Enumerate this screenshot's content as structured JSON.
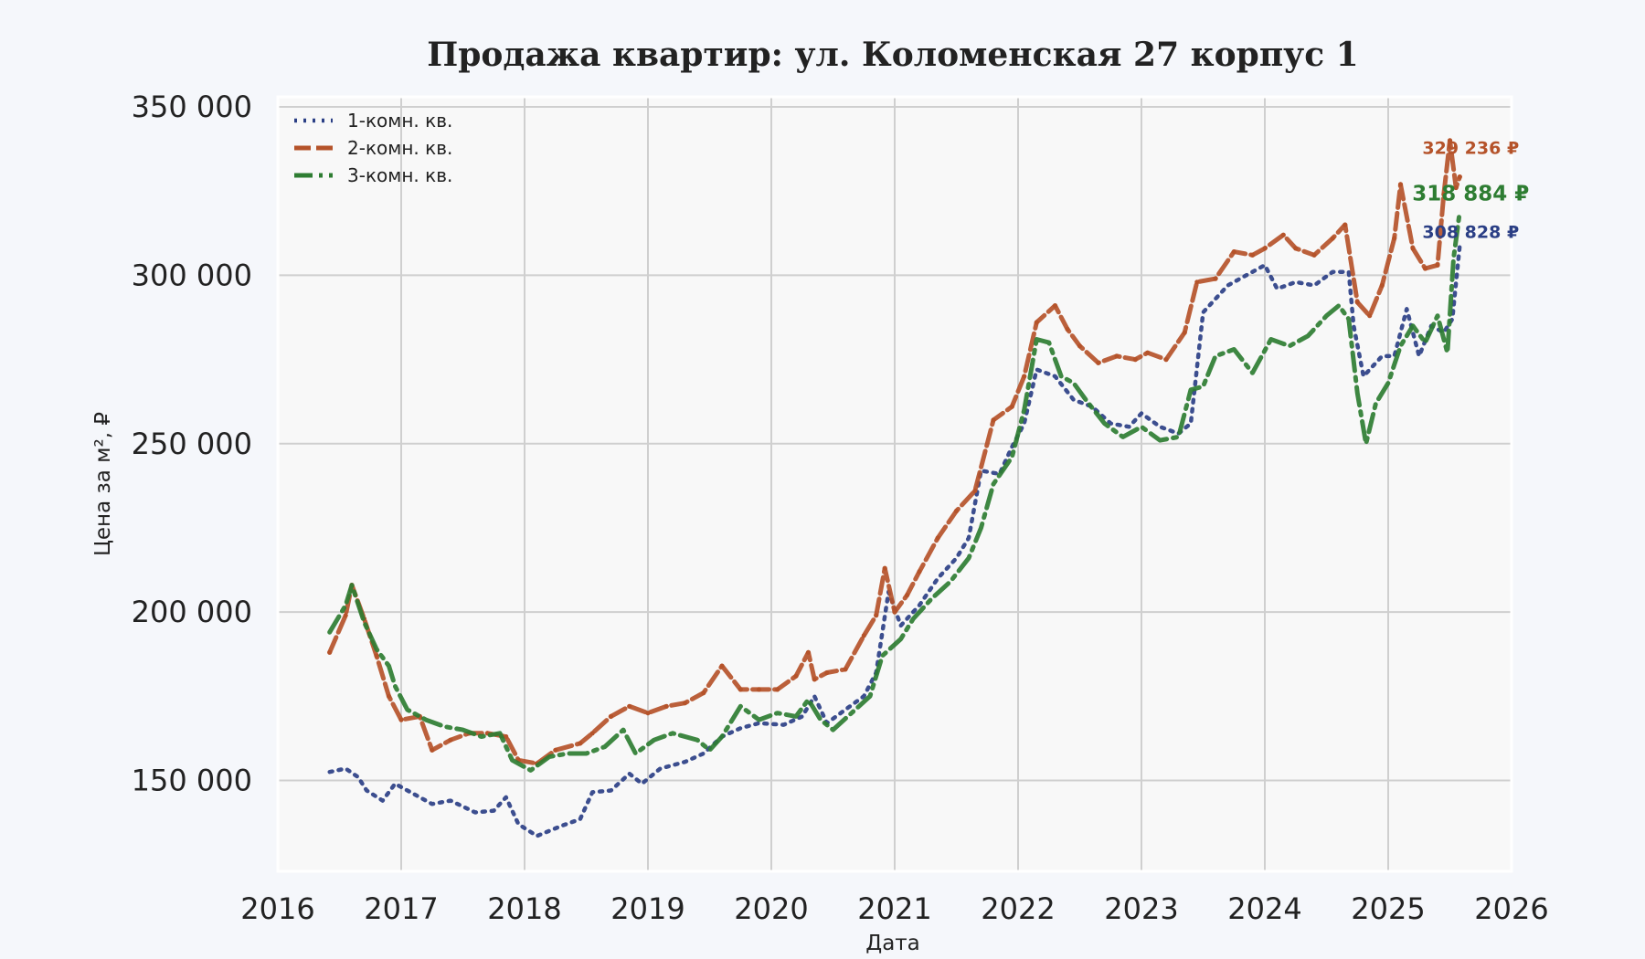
{
  "chart_data": {
    "type": "line",
    "title": "Продажа квартир: ул. Коломенская 27 корпус 1",
    "xlabel": "Дата",
    "ylabel": "Цена за м², ₽",
    "xlim": [
      2016,
      2026
    ],
    "ylim": [
      123000,
      353000
    ],
    "x_ticks": [
      2016,
      2017,
      2018,
      2019,
      2020,
      2021,
      2022,
      2023,
      2024,
      2025,
      2026
    ],
    "x_tick_labels": [
      "2016",
      "2017",
      "2018",
      "2019",
      "2020",
      "2021",
      "2022",
      "2023",
      "2024",
      "2025",
      "2026"
    ],
    "y_ticks": [
      150000,
      200000,
      250000,
      300000,
      350000
    ],
    "y_tick_labels": [
      "150 000",
      "200 000",
      "250 000",
      "300 000",
      "350 000"
    ],
    "grid": true,
    "legend_position": "top-left",
    "series": [
      {
        "name": "1-комн. кв.",
        "color": "#2b3f85",
        "dash": "dotted",
        "end_label": "308 828 ₽",
        "end_value": 308828,
        "points": [
          [
            2016.42,
            152500
          ],
          [
            2016.55,
            153500
          ],
          [
            2016.65,
            151000
          ],
          [
            2016.72,
            147000
          ],
          [
            2016.85,
            144000
          ],
          [
            2016.95,
            149000
          ],
          [
            2017.1,
            146000
          ],
          [
            2017.25,
            143000
          ],
          [
            2017.4,
            144000
          ],
          [
            2017.6,
            140500
          ],
          [
            2017.75,
            141000
          ],
          [
            2017.85,
            145000
          ],
          [
            2017.95,
            137000
          ],
          [
            2018.1,
            133500
          ],
          [
            2018.3,
            136500
          ],
          [
            2018.45,
            138500
          ],
          [
            2018.55,
            146500
          ],
          [
            2018.7,
            147000
          ],
          [
            2018.85,
            152000
          ],
          [
            2018.95,
            149000
          ],
          [
            2019.1,
            153500
          ],
          [
            2019.3,
            155500
          ],
          [
            2019.45,
            158000
          ],
          [
            2019.6,
            163000
          ],
          [
            2019.75,
            165500
          ],
          [
            2019.9,
            167000
          ],
          [
            2020.1,
            166500
          ],
          [
            2020.25,
            169000
          ],
          [
            2020.35,
            175000
          ],
          [
            2020.45,
            167000
          ],
          [
            2020.6,
            171000
          ],
          [
            2020.75,
            175000
          ],
          [
            2020.85,
            182000
          ],
          [
            2020.95,
            206000
          ],
          [
            2021.05,
            196000
          ],
          [
            2021.2,
            202000
          ],
          [
            2021.35,
            210000
          ],
          [
            2021.5,
            216000
          ],
          [
            2021.6,
            222000
          ],
          [
            2021.7,
            242000
          ],
          [
            2021.85,
            241000
          ],
          [
            2021.95,
            249000
          ],
          [
            2022.05,
            256000
          ],
          [
            2022.15,
            272000
          ],
          [
            2022.3,
            270000
          ],
          [
            2022.45,
            263000
          ],
          [
            2022.6,
            261000
          ],
          [
            2022.75,
            256000
          ],
          [
            2022.9,
            255000
          ],
          [
            2023.0,
            259000
          ],
          [
            2023.15,
            255000
          ],
          [
            2023.3,
            253000
          ],
          [
            2023.4,
            256000
          ],
          [
            2023.5,
            289000
          ],
          [
            2023.7,
            297000
          ],
          [
            2023.85,
            300000
          ],
          [
            2024.0,
            303000
          ],
          [
            2024.1,
            296000
          ],
          [
            2024.25,
            298000
          ],
          [
            2024.4,
            297000
          ],
          [
            2024.55,
            301000
          ],
          [
            2024.68,
            301000
          ],
          [
            2024.72,
            285000
          ],
          [
            2024.8,
            270000
          ],
          [
            2024.95,
            276000
          ],
          [
            2025.05,
            276000
          ],
          [
            2025.15,
            290000
          ],
          [
            2025.25,
            276000
          ],
          [
            2025.35,
            285000
          ],
          [
            2025.45,
            283000
          ],
          [
            2025.52,
            287000
          ],
          [
            2025.58,
            308828
          ]
        ]
      },
      {
        "name": "2-комн. кв.",
        "color": "#b5532a",
        "dash": "dashed",
        "end_label": "329 236 ₽",
        "end_value": 329236,
        "points": [
          [
            2016.42,
            188000
          ],
          [
            2016.55,
            199000
          ],
          [
            2016.6,
            208000
          ],
          [
            2016.7,
            198000
          ],
          [
            2016.8,
            187000
          ],
          [
            2016.9,
            175000
          ],
          [
            2017.0,
            168000
          ],
          [
            2017.15,
            169000
          ],
          [
            2017.25,
            159000
          ],
          [
            2017.4,
            162000
          ],
          [
            2017.55,
            164000
          ],
          [
            2017.7,
            164000
          ],
          [
            2017.85,
            163000
          ],
          [
            2017.95,
            156000
          ],
          [
            2018.1,
            155000
          ],
          [
            2018.25,
            159000
          ],
          [
            2018.45,
            161000
          ],
          [
            2018.55,
            164000
          ],
          [
            2018.7,
            169000
          ],
          [
            2018.85,
            172000
          ],
          [
            2019.0,
            170000
          ],
          [
            2019.15,
            172000
          ],
          [
            2019.3,
            173000
          ],
          [
            2019.45,
            176000
          ],
          [
            2019.6,
            184000
          ],
          [
            2019.75,
            177000
          ],
          [
            2019.9,
            177000
          ],
          [
            2020.05,
            177000
          ],
          [
            2020.2,
            181000
          ],
          [
            2020.3,
            188000
          ],
          [
            2020.35,
            180000
          ],
          [
            2020.45,
            182000
          ],
          [
            2020.6,
            183000
          ],
          [
            2020.75,
            193000
          ],
          [
            2020.85,
            199000
          ],
          [
            2020.92,
            213000
          ],
          [
            2021.0,
            200000
          ],
          [
            2021.1,
            205000
          ],
          [
            2021.2,
            212000
          ],
          [
            2021.35,
            222000
          ],
          [
            2021.5,
            230000
          ],
          [
            2021.65,
            236000
          ],
          [
            2021.8,
            257000
          ],
          [
            2021.95,
            261000
          ],
          [
            2022.05,
            270000
          ],
          [
            2022.15,
            286000
          ],
          [
            2022.3,
            291000
          ],
          [
            2022.4,
            284000
          ],
          [
            2022.5,
            279000
          ],
          [
            2022.65,
            274000
          ],
          [
            2022.8,
            276000
          ],
          [
            2022.95,
            275000
          ],
          [
            2023.05,
            277000
          ],
          [
            2023.2,
            275000
          ],
          [
            2023.35,
            283000
          ],
          [
            2023.45,
            298000
          ],
          [
            2023.6,
            299000
          ],
          [
            2023.75,
            307000
          ],
          [
            2023.9,
            306000
          ],
          [
            2024.0,
            308000
          ],
          [
            2024.15,
            312000
          ],
          [
            2024.25,
            308000
          ],
          [
            2024.4,
            306000
          ],
          [
            2024.55,
            311000
          ],
          [
            2024.65,
            315000
          ],
          [
            2024.75,
            292000
          ],
          [
            2024.85,
            288000
          ],
          [
            2024.95,
            297000
          ],
          [
            2025.05,
            311000
          ],
          [
            2025.1,
            327000
          ],
          [
            2025.2,
            308000
          ],
          [
            2025.3,
            302000
          ],
          [
            2025.4,
            303000
          ],
          [
            2025.45,
            324000
          ],
          [
            2025.5,
            340000
          ],
          [
            2025.55,
            326000
          ],
          [
            2025.58,
            329236
          ]
        ]
      },
      {
        "name": "3-комн. кв.",
        "color": "#2e7d32",
        "dash": "dashdot",
        "end_label": "318 884 ₽",
        "end_value": 318884,
        "points": [
          [
            2016.42,
            194000
          ],
          [
            2016.55,
            202000
          ],
          [
            2016.6,
            208000
          ],
          [
            2016.7,
            197000
          ],
          [
            2016.8,
            189000
          ],
          [
            2016.9,
            184000
          ],
          [
            2016.95,
            178000
          ],
          [
            2017.05,
            171000
          ],
          [
            2017.2,
            168000
          ],
          [
            2017.35,
            166000
          ],
          [
            2017.5,
            165000
          ],
          [
            2017.65,
            163000
          ],
          [
            2017.8,
            164000
          ],
          [
            2017.9,
            156000
          ],
          [
            2018.05,
            153000
          ],
          [
            2018.2,
            157000
          ],
          [
            2018.35,
            158000
          ],
          [
            2018.5,
            158000
          ],
          [
            2018.65,
            160000
          ],
          [
            2018.8,
            165000
          ],
          [
            2018.9,
            158000
          ],
          [
            2019.05,
            162000
          ],
          [
            2019.2,
            164000
          ],
          [
            2019.4,
            162000
          ],
          [
            2019.5,
            159000
          ],
          [
            2019.6,
            163000
          ],
          [
            2019.75,
            172000
          ],
          [
            2019.9,
            168000
          ],
          [
            2020.05,
            170000
          ],
          [
            2020.2,
            169000
          ],
          [
            2020.3,
            174000
          ],
          [
            2020.4,
            168000
          ],
          [
            2020.5,
            165000
          ],
          [
            2020.65,
            170000
          ],
          [
            2020.8,
            175000
          ],
          [
            2020.9,
            187000
          ],
          [
            2021.05,
            192000
          ],
          [
            2021.15,
            198000
          ],
          [
            2021.3,
            204000
          ],
          [
            2021.45,
            209000
          ],
          [
            2021.6,
            216000
          ],
          [
            2021.7,
            225000
          ],
          [
            2021.8,
            238000
          ],
          [
            2021.95,
            246000
          ],
          [
            2022.05,
            260000
          ],
          [
            2022.15,
            281000
          ],
          [
            2022.25,
            280000
          ],
          [
            2022.35,
            270000
          ],
          [
            2022.45,
            268000
          ],
          [
            2022.55,
            263000
          ],
          [
            2022.7,
            256000
          ],
          [
            2022.85,
            252000
          ],
          [
            2023.0,
            255000
          ],
          [
            2023.15,
            251000
          ],
          [
            2023.3,
            252000
          ],
          [
            2023.4,
            266000
          ],
          [
            2023.5,
            267000
          ],
          [
            2023.6,
            276000
          ],
          [
            2023.75,
            278000
          ],
          [
            2023.9,
            271000
          ],
          [
            2024.05,
            281000
          ],
          [
            2024.2,
            279000
          ],
          [
            2024.35,
            282000
          ],
          [
            2024.5,
            288000
          ],
          [
            2024.6,
            291000
          ],
          [
            2024.68,
            287000
          ],
          [
            2024.75,
            265000
          ],
          [
            2024.82,
            250000
          ],
          [
            2024.9,
            262000
          ],
          [
            2025.0,
            268000
          ],
          [
            2025.1,
            279000
          ],
          [
            2025.2,
            285000
          ],
          [
            2025.3,
            280000
          ],
          [
            2025.4,
            288000
          ],
          [
            2025.48,
            277000
          ],
          [
            2025.53,
            305000
          ],
          [
            2025.58,
            318884
          ]
        ]
      }
    ]
  }
}
